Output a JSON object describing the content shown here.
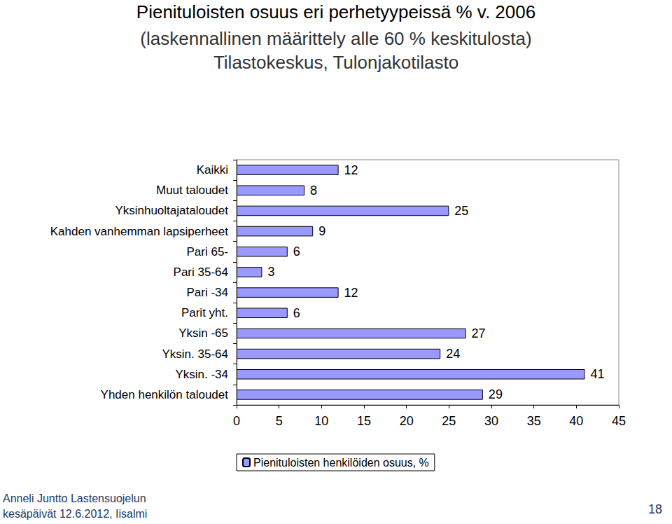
{
  "chart_data": {
    "type": "bar",
    "orientation": "horizontal",
    "title": "Pienituloisten osuus eri perhetyypeissä % v. 2006",
    "subtitle": "(laskennallinen määrittely alle 60 % keskitulosta)\nTilastokeskus, Tulonjakotilasto",
    "annotations": [
      "Anneli Juntto Lastensuojelun\nkesäpäivät 12.6.2012, Iisalmi",
      "18"
    ],
    "categories": [
      "Kaikki",
      "Muut taloudet",
      "Yksinhuoltajataloudet",
      "Kahden vanhemman lapsiperheet",
      "Pari 65-",
      "Pari 35-64",
      "Pari -34",
      "Parit yht.",
      "Yksin -65",
      "Yksin. 35-64",
      "Yksin. -34",
      "Yhden henkilön taloudet"
    ],
    "series": [
      {
        "name": "Pienituloisten henkilöiden osuus, %",
        "color": "#9999ff",
        "values": [
          12,
          8,
          25,
          9,
          6,
          3,
          12,
          6,
          27,
          24,
          41,
          29
        ]
      }
    ],
    "xlim": [
      0,
      45
    ],
    "xticks": [
      0,
      5,
      10,
      15,
      20,
      25,
      30,
      35,
      40,
      45
    ],
    "grid": false,
    "legend": "bottom",
    "data_labels": true
  }
}
